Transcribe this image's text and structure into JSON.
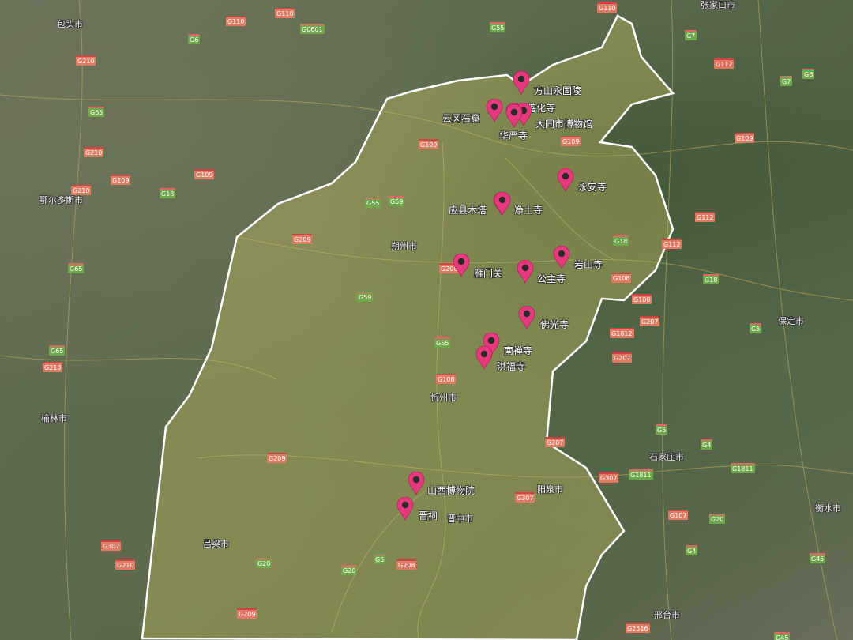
{
  "map": {
    "type": "satellite",
    "colors": {
      "marker": "#e6397e",
      "boundary": "#ffffff",
      "region_tint": "#c9c060"
    },
    "markers": [
      {
        "label": "方山永固陵",
        "icon": "map-pin-icon"
      },
      {
        "label": "云冈石窟",
        "icon": "map-pin-icon"
      },
      {
        "label": "善化寺",
        "icon": "map-pin-icon"
      },
      {
        "label": "大同市博物馆",
        "icon": "map-pin-icon"
      },
      {
        "label": "华严寺",
        "icon": "map-pin-icon"
      },
      {
        "label": "永安寺",
        "icon": "map-pin-icon"
      },
      {
        "label": "应县木塔",
        "icon": "map-pin-icon"
      },
      {
        "label": "净土寺",
        "icon": "map-pin-icon"
      },
      {
        "label": "雁门关",
        "icon": "map-pin-icon"
      },
      {
        "label": "公主寺",
        "icon": "map-pin-icon"
      },
      {
        "label": "岩山寺",
        "icon": "map-pin-icon"
      },
      {
        "label": "佛光寺",
        "icon": "map-pin-icon"
      },
      {
        "label": "南禅寺",
        "icon": "map-pin-icon"
      },
      {
        "label": "洪福寺",
        "icon": "map-pin-icon"
      },
      {
        "label": "山西博物院",
        "icon": "map-pin-icon"
      },
      {
        "label": "晋祠",
        "icon": "map-pin-icon"
      }
    ],
    "cities": [
      "包头市",
      "张家口市",
      "鄂尔多斯市",
      "榆林市",
      "保定市",
      "石家庄市",
      "衡水市",
      "邢台市",
      "朔州市",
      "忻州市",
      "阳泉市",
      "吕梁市",
      "晋中市"
    ],
    "roads": [
      "G110",
      "G110",
      "G6",
      "G0601",
      "G55",
      "G110",
      "G7",
      "G210",
      "G65",
      "G210",
      "G109",
      "G18",
      "G109",
      "G210",
      "G109",
      "G109",
      "G112",
      "G55",
      "G59",
      "G18",
      "G209",
      "G208",
      "G59",
      "G55",
      "G108",
      "G108",
      "G112",
      "G207",
      "G1812",
      "G207",
      "G5",
      "G18",
      "G5",
      "G209",
      "G207",
      "G307",
      "G1811",
      "G4",
      "G1811",
      "G307",
      "G20",
      "G5",
      "G208",
      "G20",
      "G20",
      "G107",
      "G4",
      "G45",
      "G45",
      "G209",
      "G2516",
      "G65",
      "G65",
      "G210",
      "G307",
      "G210",
      "G109",
      "G6",
      "G7",
      "G112",
      "G108"
    ]
  }
}
